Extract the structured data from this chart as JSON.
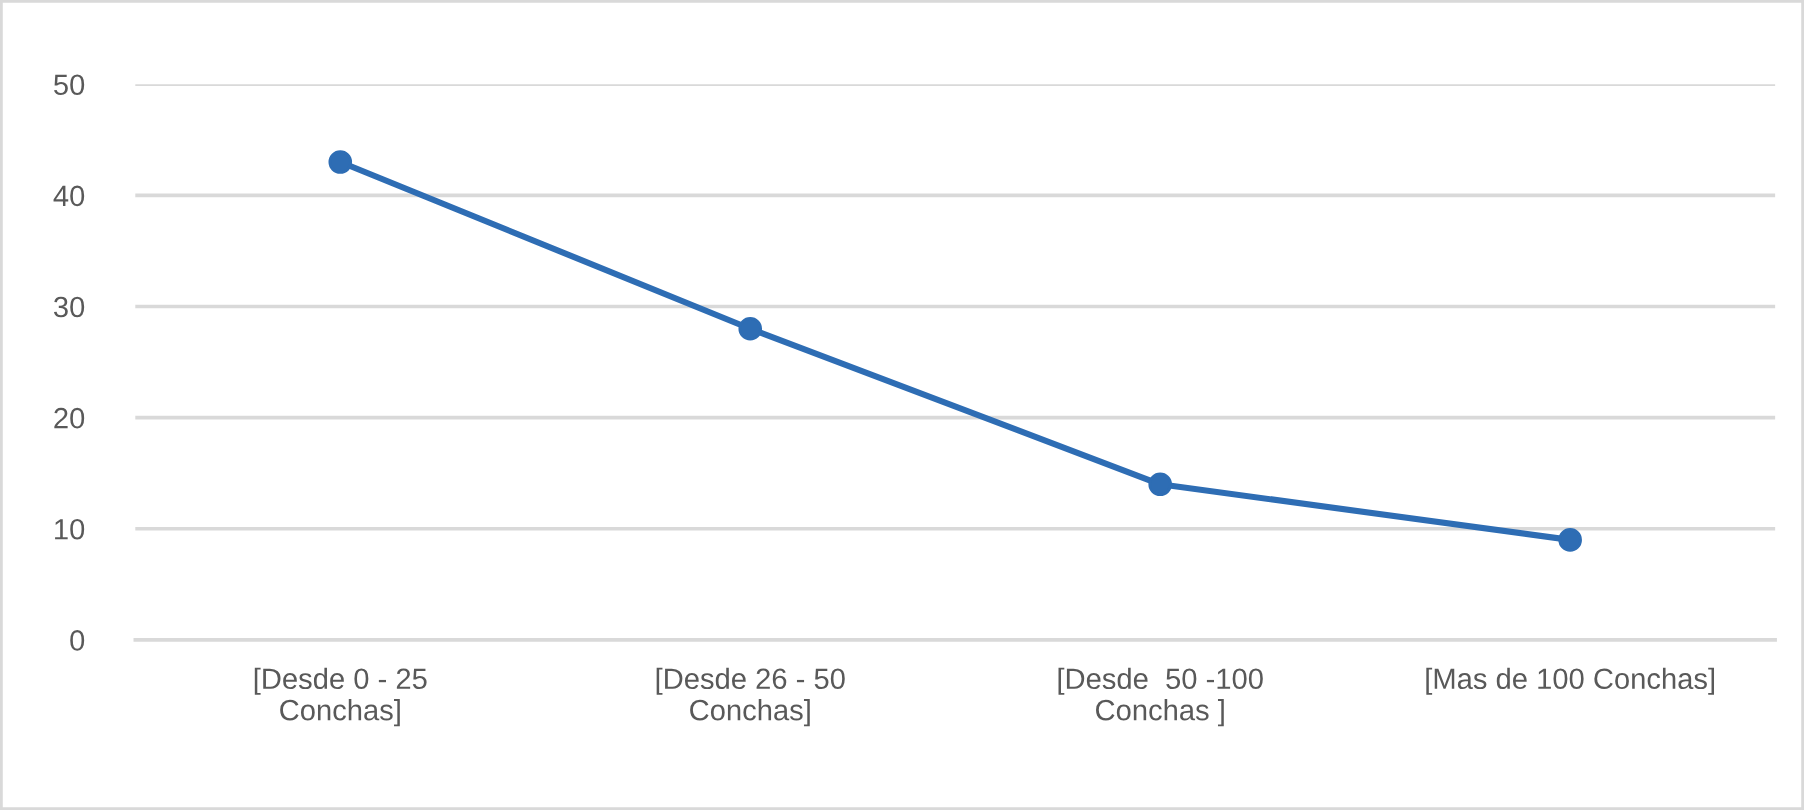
{
  "chart_data": {
    "type": "line",
    "categories": [
      "[Desde 0 - 25\nConchas]",
      "[Desde 26 - 50\nConchas]",
      "[Desde  50 -100\nConchas ]",
      "[Mas de 100 Conchas]"
    ],
    "series": [
      {
        "color": "#2e6db4",
        "values": [
          43,
          28,
          14,
          9
        ]
      }
    ],
    "ylim": [
      0,
      50
    ],
    "yticks": [
      0,
      10,
      20,
      30,
      40,
      50
    ],
    "grid": "y",
    "marker": "circle"
  }
}
